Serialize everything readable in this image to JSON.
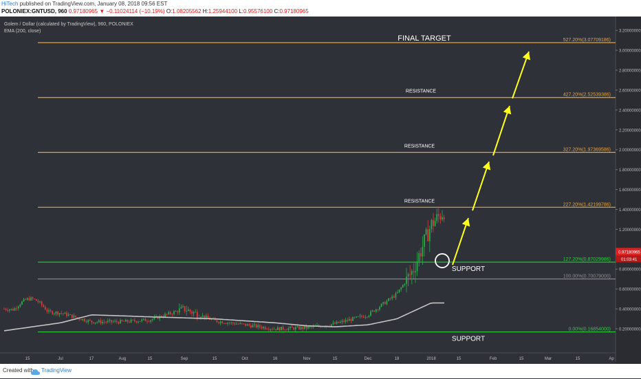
{
  "header": {
    "author": "HiTech",
    "published": "published on TradingView.com, January 08, 2018 09:56 EST",
    "symbol": "POLONIEX:GNTUSD, 960",
    "last": "0.97180965",
    "change": "−0.11024114 (−10.19%)",
    "o_label": "O:",
    "o_value": "1.08205562",
    "h_label": "H:",
    "h_value": "1.25944100",
    "l_label": "L:",
    "l_value": "0.95576100",
    "c_label": "C:",
    "c_value": "0.97180965"
  },
  "legend": {
    "title": "Golem / Dollar (calculated by TradingView), 960, POLONIEX",
    "indicator": "EMA (200, close)"
  },
  "footer": {
    "created_with": "Created with",
    "brand": "TradingView"
  },
  "colors": {
    "background": "#2f3138",
    "fib_orange": "#e8a33a",
    "fib_green": "#2ecc40",
    "fib_grey": "#8e8e8e",
    "arrow": "#ffff1a",
    "up_candle": "#2ba84a",
    "down_candle": "#d93a3a",
    "ema": "#c4c4c4",
    "price_tag": "#e02020"
  },
  "chart_data": {
    "type": "line",
    "title": "Golem / Dollar (calculated by TradingView), 960, POLONIEX",
    "y_axis_ticks": [
      "3.20000000",
      "3.00000000",
      "2.80000000",
      "2.60000000",
      "2.40000000",
      "2.20000000",
      "2.00000000",
      "1.80000000",
      "1.60000000",
      "1.40000000",
      "1.20000000",
      "1.00000000",
      "0.80000000",
      "0.60000000",
      "0.40000000",
      "0.20000000"
    ],
    "x_axis_ticks": [
      "15",
      "Jul",
      "17",
      "Aug",
      "15",
      "Sep",
      "15",
      "Oct",
      "16",
      "Nov",
      "15",
      "Dec",
      "18",
      "2018",
      "15",
      "Feb",
      "15",
      "Mar",
      "15",
      "Ap"
    ],
    "ylim": [
      0.05,
      3.3
    ],
    "price_points": [
      [
        "15",
        0.4
      ],
      [
        "Jul",
        0.36
      ],
      [
        "17",
        0.27
      ],
      [
        "Aug",
        0.27
      ],
      [
        "15",
        0.29
      ],
      [
        "Sep",
        0.4
      ],
      [
        "15",
        0.28
      ],
      [
        "Oct",
        0.24
      ],
      [
        "16",
        0.2
      ],
      [
        "Nov",
        0.21
      ],
      [
        "15",
        0.25
      ],
      [
        "Dec",
        0.34
      ],
      [
        "18",
        0.55
      ],
      [
        "2018",
        1.05
      ]
    ],
    "ema_points": [
      [
        "15",
        0.18
      ],
      [
        "Jul",
        0.26
      ],
      [
        "17",
        0.34
      ],
      [
        "Aug",
        0.33
      ],
      [
        "15",
        0.32
      ],
      [
        "Sep",
        0.31
      ],
      [
        "15",
        0.3
      ],
      [
        "Oct",
        0.28
      ],
      [
        "16",
        0.26
      ],
      [
        "Nov",
        0.23
      ],
      [
        "15",
        0.22
      ],
      [
        "Dec",
        0.24
      ],
      [
        "18",
        0.3
      ],
      [
        "2018",
        0.46
      ]
    ],
    "fib_levels": [
      {
        "label": "0.00%(0.16854000)",
        "value": 0.16854,
        "color": "#2ecc40"
      },
      {
        "label": "100.00%(0.70079000)",
        "value": 0.70079,
        "color": "#8e8e8e"
      },
      {
        "label": "127.20%(0.87029986)",
        "value": 0.87029986,
        "color": "#2ecc40"
      },
      {
        "label": "227.20%(1.42199786)",
        "value": 1.42199786,
        "color": "#e8a33a"
      },
      {
        "label": "327.20%(1.97369586)",
        "value": 1.97369586,
        "color": "#e8a33a"
      },
      {
        "label": "427.20%(2.52539386)",
        "value": 2.52539386,
        "color": "#e8a33a"
      },
      {
        "label": "527.20%(3.07709186)",
        "value": 3.07709186,
        "color": "#e8a33a"
      }
    ],
    "annotations": {
      "final_target": "FINAL TARGET",
      "resistance": "RESISTANCE",
      "support": "SUPPORT"
    },
    "price_tag": {
      "value": "0.97180965",
      "countdown": "01:03:41"
    }
  }
}
